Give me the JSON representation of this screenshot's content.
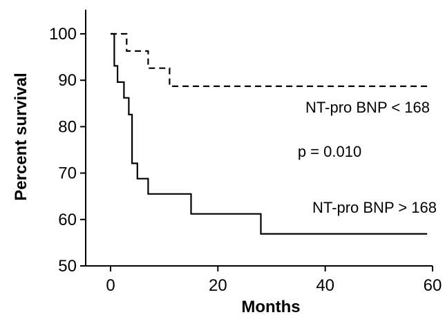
{
  "chart_data": {
    "type": "line",
    "subtype": "kaplan-meier step survival curve",
    "xlabel": "Months",
    "ylabel": "Percent survival",
    "xlim": [
      0,
      60
    ],
    "ylim": [
      50,
      100
    ],
    "xticks": [
      0,
      20,
      40,
      60
    ],
    "yticks": [
      50,
      60,
      70,
      80,
      90,
      100
    ],
    "grid": false,
    "series": [
      {
        "name": "NT-pro BNP < 168",
        "style": "dashed",
        "color": "#000000",
        "x": [
          0,
          3,
          7,
          11,
          59
        ],
        "y": [
          100,
          96.3,
          92.6,
          88.7,
          88.7
        ]
      },
      {
        "name": "NT-pro BNP > 168",
        "style": "solid",
        "color": "#000000",
        "x": [
          0,
          0.7,
          1.3,
          2.5,
          3.4,
          4,
          5,
          7,
          15,
          28,
          59
        ],
        "y": [
          100,
          93.1,
          89.6,
          86.2,
          82.6,
          72.1,
          68.8,
          65.5,
          61.2,
          56.9,
          56.9
        ]
      }
    ],
    "annotations": [
      "NT-pro BNP < 168",
      "p = 0.010",
      "NT-pro BNP > 168"
    ]
  }
}
